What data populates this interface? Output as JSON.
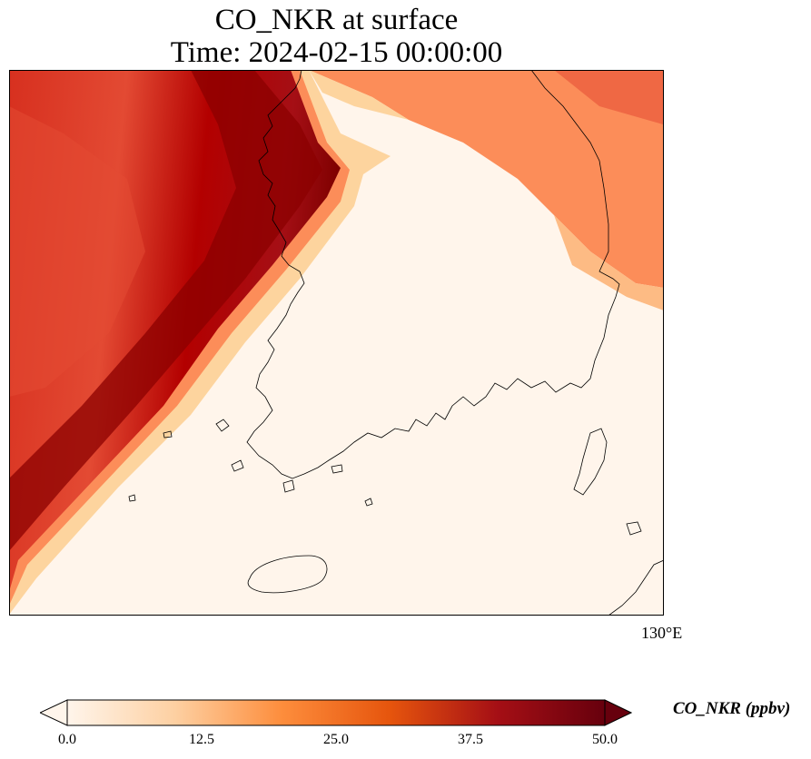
{
  "title": {
    "line1": "CO_NKR at surface",
    "line2": "Time: 2024-02-15 00:00:00"
  },
  "map": {
    "variable": "CO_NKR",
    "units": "ppbv",
    "colormap": [
      "#fff5eb",
      "#fee6ce",
      "#fdd0a2",
      "#fdae6b",
      "#fd8d3c",
      "#f16913",
      "#d94801",
      "#a50f15",
      "#67000d"
    ],
    "ocean_land_fill": "#fff5eb",
    "high_region_color": "#a50f15",
    "coastline_color": "#000000",
    "lon_tick_labels": [
      "130°E"
    ]
  },
  "colorbar": {
    "label": "CO_NKR (ppbv)",
    "ticks": [
      "0.0",
      "12.5",
      "25.0",
      "37.5",
      "50.0"
    ],
    "min": 0,
    "max": 50,
    "extend": "both",
    "colors": [
      "#fff5eb",
      "#fdd0a2",
      "#fd8d3c",
      "#d94801",
      "#a50f15",
      "#67000d"
    ]
  }
}
